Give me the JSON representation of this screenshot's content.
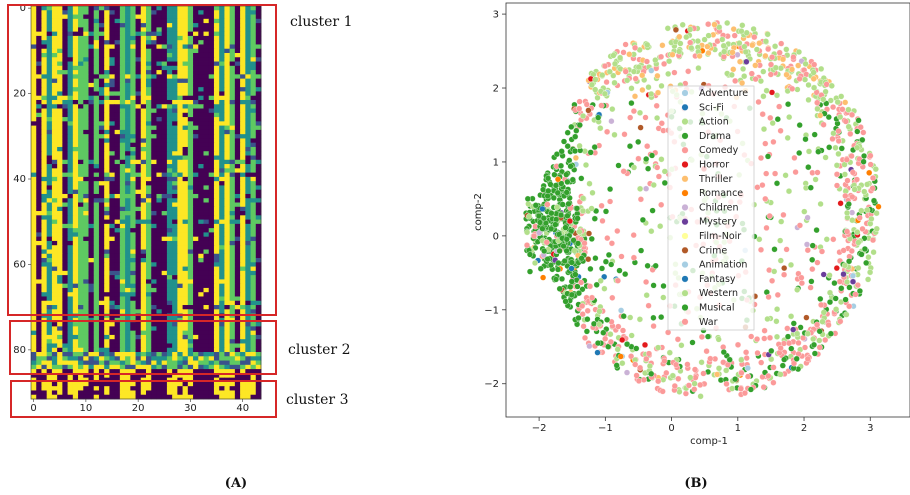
{
  "panels": [
    {
      "label": "(A)"
    },
    {
      "label": "(B)"
    }
  ],
  "chart_data": [
    {
      "type": "heatmap",
      "rows": 92,
      "cols": 44,
      "x_ticks": [
        "0",
        "10",
        "20",
        "30",
        "40"
      ],
      "y_ticks": [
        "0",
        "20",
        "40",
        "60",
        "80"
      ],
      "x_tick_values": [
        0,
        10,
        20,
        30,
        40
      ],
      "y_tick_values": [
        0,
        20,
        40,
        60,
        80
      ],
      "colormap": [
        "#440154",
        "#3b528b",
        "#21918c",
        "#5ec962",
        "#fde725"
      ],
      "clusters": [
        {
          "label": "cluster 1",
          "row_start": 0,
          "row_end": 75
        },
        {
          "label": "cluster 2",
          "row_start": 81,
          "row_end": 84
        },
        {
          "label": "cluster 3",
          "row_start": 85,
          "row_end": 91
        }
      ],
      "annotation_color": "#d62728"
    },
    {
      "type": "scatter",
      "xlabel": "comp-1",
      "ylabel": "comp-2",
      "xlim": [
        -2.5,
        3.6
      ],
      "ylim": [
        -2.45,
        3.15
      ],
      "x_ticks": [
        "−2",
        "−1",
        "0",
        "1",
        "2",
        "3"
      ],
      "y_ticks": [
        "−2",
        "−1",
        "0",
        "1",
        "2",
        "3"
      ],
      "x_tick_values": [
        -2,
        -1,
        0,
        1,
        2,
        3
      ],
      "y_tick_values": [
        -2,
        -1,
        0,
        1,
        2,
        3
      ],
      "legend_position": "center",
      "series": [
        {
          "name": "Adventure",
          "color": "#a6cee3"
        },
        {
          "name": "Sci-Fi",
          "color": "#1f78b4"
        },
        {
          "name": "Action",
          "color": "#b2df8a"
        },
        {
          "name": "Drama",
          "color": "#33a02c"
        },
        {
          "name": "Comedy",
          "color": "#fb9a99"
        },
        {
          "name": "Horror",
          "color": "#e31a1c"
        },
        {
          "name": "Thriller",
          "color": "#fdbf6f"
        },
        {
          "name": "Romance",
          "color": "#ff7f00"
        },
        {
          "name": "Children",
          "color": "#cab2d6"
        },
        {
          "name": "Mystery",
          "color": "#6a3d9a"
        },
        {
          "name": "Film-Noir",
          "color": "#ffff99"
        },
        {
          "name": "Crime",
          "color": "#b15928"
        },
        {
          "name": "Animation",
          "color": "#a6cee3"
        },
        {
          "name": "Fantasy",
          "color": "#1f78b4"
        },
        {
          "name": "Western",
          "color": "#b2df8a"
        },
        {
          "name": "Musical",
          "color": "#33a02c"
        },
        {
          "name": "War",
          "color": "#fb9a99"
        }
      ],
      "point_count": 2600
    }
  ]
}
